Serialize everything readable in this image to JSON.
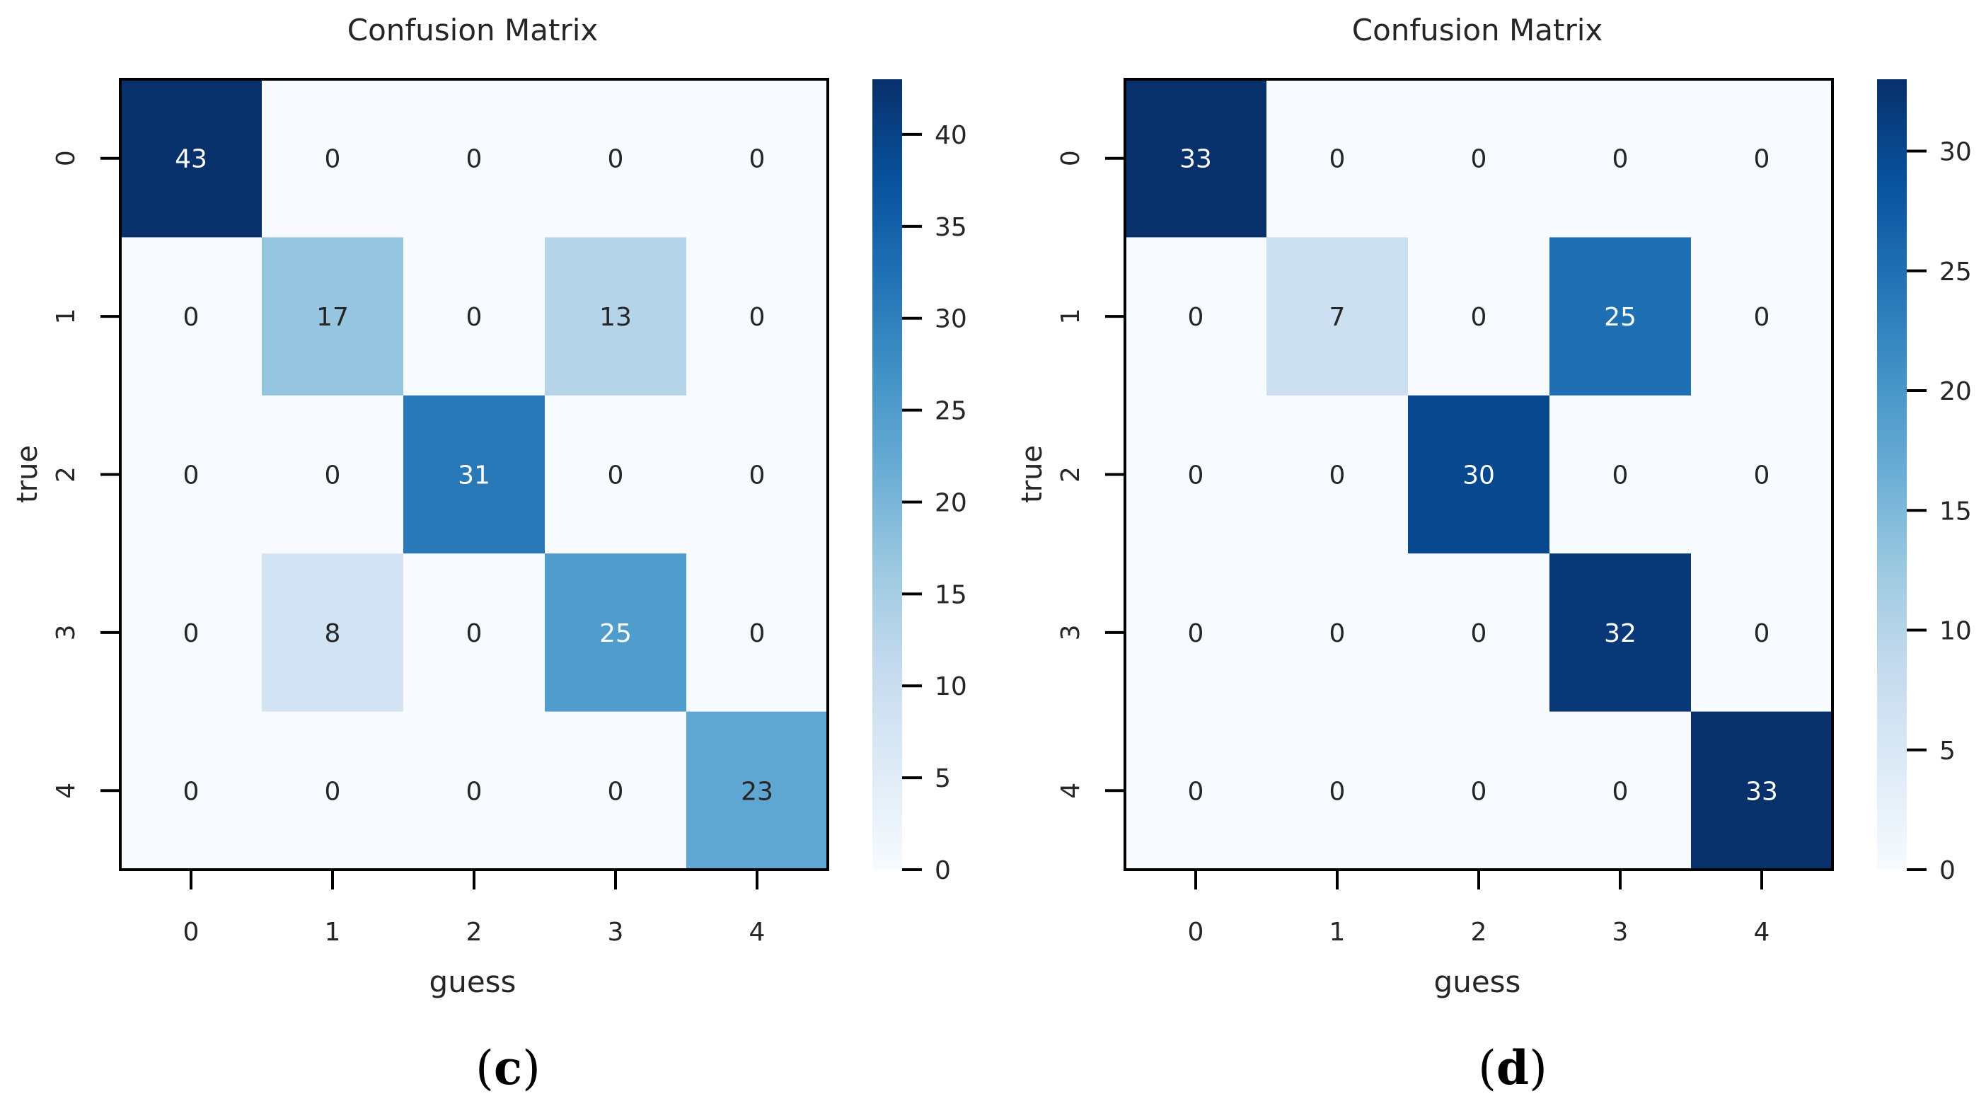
{
  "chart_data": [
    {
      "type": "heatmap",
      "title": "Confusion Matrix",
      "xlabel": "guess",
      "ylabel": "true",
      "panel_label": "(c)",
      "panel_letter": "c",
      "x_categories": [
        "0",
        "1",
        "2",
        "3",
        "4"
      ],
      "y_categories": [
        "0",
        "1",
        "2",
        "3",
        "4"
      ],
      "matrix": [
        [
          43,
          0,
          0,
          0,
          0
        ],
        [
          0,
          17,
          0,
          13,
          0
        ],
        [
          0,
          0,
          31,
          0,
          0
        ],
        [
          0,
          8,
          0,
          25,
          0
        ],
        [
          0,
          0,
          0,
          0,
          23
        ]
      ],
      "colorbar": {
        "min": 0,
        "max": 43,
        "ticks": [
          0,
          5,
          10,
          15,
          20,
          25,
          30,
          35,
          40
        ],
        "colormap": "Blues"
      }
    },
    {
      "type": "heatmap",
      "title": "Confusion Matrix",
      "xlabel": "guess",
      "ylabel": "true",
      "panel_label": "(d)",
      "panel_letter": "d",
      "x_categories": [
        "0",
        "1",
        "2",
        "3",
        "4"
      ],
      "y_categories": [
        "0",
        "1",
        "2",
        "3",
        "4"
      ],
      "matrix": [
        [
          33,
          0,
          0,
          0,
          0
        ],
        [
          0,
          7,
          0,
          25,
          0
        ],
        [
          0,
          0,
          30,
          0,
          0
        ],
        [
          0,
          0,
          0,
          32,
          0
        ],
        [
          0,
          0,
          0,
          0,
          33
        ]
      ],
      "colorbar": {
        "min": 0,
        "max": 33,
        "ticks": [
          0,
          5,
          10,
          15,
          20,
          25,
          30
        ],
        "colormap": "Blues"
      }
    }
  ],
  "colors": {
    "blues_scale": [
      "#f7fbff",
      "#deebf7",
      "#c6dbef",
      "#9ecae1",
      "#6baed6",
      "#4292c6",
      "#2171b5",
      "#08519c",
      "#08306b"
    ],
    "text_dark": "#262626",
    "text_light": "#ffffff",
    "axis": "#000000"
  }
}
